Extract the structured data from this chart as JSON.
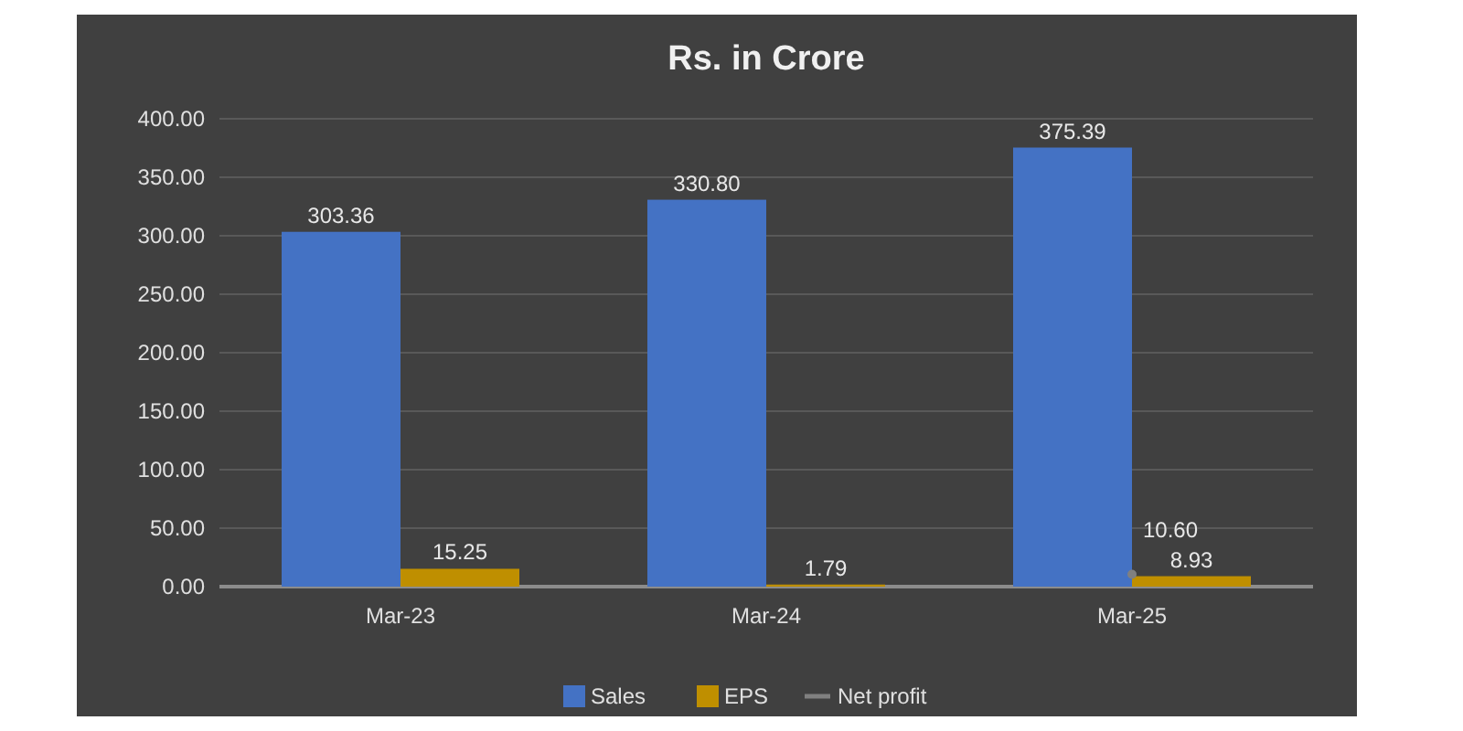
{
  "chart_data": {
    "type": "bar",
    "title": "Rs. in Crore",
    "categories": [
      "Mar-23",
      "Mar-24",
      "Mar-25"
    ],
    "series": [
      {
        "name": "Sales",
        "color": "#4472c4",
        "values": [
          303.36,
          330.8,
          375.39
        ],
        "value_labels": [
          "303.36",
          "330.80",
          "375.39"
        ]
      },
      {
        "name": "EPS",
        "color": "#bf8f00",
        "values": [
          15.25,
          1.79,
          8.93
        ],
        "value_labels": [
          "15.25",
          "1.79",
          "8.93"
        ]
      },
      {
        "name": "Net profit",
        "type": "line",
        "color": "#808080",
        "values": [
          null,
          null,
          10.6
        ],
        "value_labels": [
          null,
          null,
          "10.60"
        ]
      }
    ],
    "ylim": [
      0,
      400
    ],
    "yticks": [
      {
        "value": 0,
        "label": "0.00"
      },
      {
        "value": 50,
        "label": "50.00"
      },
      {
        "value": 100,
        "label": "100.00"
      },
      {
        "value": 150,
        "label": "150.00"
      },
      {
        "value": 200,
        "label": "200.00"
      },
      {
        "value": 250,
        "label": "250.00"
      },
      {
        "value": 300,
        "label": "300.00"
      },
      {
        "value": 350,
        "label": "350.00"
      },
      {
        "value": 400,
        "label": "400.00"
      }
    ],
    "grid": "y",
    "legend": "bottom",
    "marker": "circle"
  }
}
